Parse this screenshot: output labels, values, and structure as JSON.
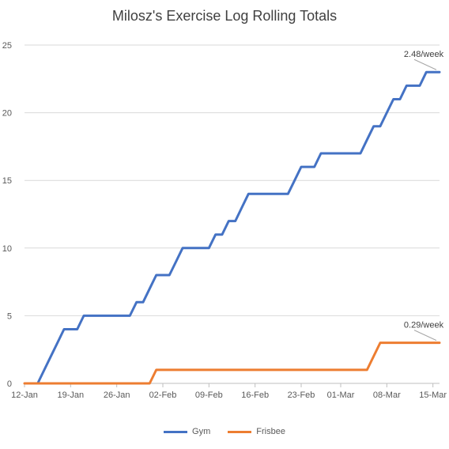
{
  "chart_data": {
    "type": "line",
    "title": "Milosz's Exercise Log Rolling Totals",
    "xlabel": "",
    "ylabel": "",
    "ylim": [
      0,
      25
    ],
    "yticks": [
      0,
      5,
      10,
      15,
      20,
      25
    ],
    "xlim": [
      "2025-01-12",
      "2025-03-16"
    ],
    "xticks": [
      {
        "date": "2025-01-12",
        "label": "12-Jan"
      },
      {
        "date": "2025-01-19",
        "label": "19-Jan"
      },
      {
        "date": "2025-01-26",
        "label": "26-Jan"
      },
      {
        "date": "2025-02-02",
        "label": "02-Feb"
      },
      {
        "date": "2025-02-09",
        "label": "09-Feb"
      },
      {
        "date": "2025-02-16",
        "label": "16-Feb"
      },
      {
        "date": "2025-02-23",
        "label": "23-Feb"
      },
      {
        "date": "2025-03-01",
        "label": "01-Mar"
      },
      {
        "date": "2025-03-08",
        "label": "08-Mar"
      },
      {
        "date": "2025-03-15",
        "label": "15-Mar"
      }
    ],
    "grid": "horizontal",
    "legend_position": "bottom",
    "series": [
      {
        "name": "Gym",
        "color": "#4472C4",
        "points": [
          [
            "2025-01-13",
            0
          ],
          [
            "2025-01-14",
            0
          ],
          [
            "2025-01-15",
            1
          ],
          [
            "2025-01-16",
            2
          ],
          [
            "2025-01-17",
            3
          ],
          [
            "2025-01-18",
            4
          ],
          [
            "2025-01-19",
            4
          ],
          [
            "2025-01-20",
            4
          ],
          [
            "2025-01-21",
            5
          ],
          [
            "2025-01-22",
            5
          ],
          [
            "2025-01-23",
            5
          ],
          [
            "2025-01-24",
            5
          ],
          [
            "2025-01-25",
            5
          ],
          [
            "2025-01-26",
            5
          ],
          [
            "2025-01-27",
            5
          ],
          [
            "2025-01-28",
            5
          ],
          [
            "2025-01-29",
            6
          ],
          [
            "2025-01-30",
            6
          ],
          [
            "2025-01-31",
            7
          ],
          [
            "2025-02-01",
            8
          ],
          [
            "2025-02-02",
            8
          ],
          [
            "2025-02-03",
            8
          ],
          [
            "2025-02-04",
            9
          ],
          [
            "2025-02-05",
            10
          ],
          [
            "2025-02-06",
            10
          ],
          [
            "2025-02-07",
            10
          ],
          [
            "2025-02-08",
            10
          ],
          [
            "2025-02-09",
            10
          ],
          [
            "2025-02-10",
            11
          ],
          [
            "2025-02-11",
            11
          ],
          [
            "2025-02-12",
            12
          ],
          [
            "2025-02-13",
            12
          ],
          [
            "2025-02-14",
            13
          ],
          [
            "2025-02-15",
            14
          ],
          [
            "2025-02-16",
            14
          ],
          [
            "2025-02-17",
            14
          ],
          [
            "2025-02-18",
            14
          ],
          [
            "2025-02-19",
            14
          ],
          [
            "2025-02-20",
            14
          ],
          [
            "2025-02-21",
            14
          ],
          [
            "2025-02-22",
            15
          ],
          [
            "2025-02-23",
            16
          ],
          [
            "2025-02-24",
            16
          ],
          [
            "2025-02-25",
            16
          ],
          [
            "2025-02-26",
            17
          ],
          [
            "2025-02-27",
            17
          ],
          [
            "2025-02-28",
            17
          ],
          [
            "2025-03-01",
            17
          ],
          [
            "2025-03-02",
            17
          ],
          [
            "2025-03-03",
            17
          ],
          [
            "2025-03-04",
            17
          ],
          [
            "2025-03-05",
            18
          ],
          [
            "2025-03-06",
            19
          ],
          [
            "2025-03-07",
            19
          ],
          [
            "2025-03-08",
            20
          ],
          [
            "2025-03-09",
            21
          ],
          [
            "2025-03-10",
            21
          ],
          [
            "2025-03-11",
            22
          ],
          [
            "2025-03-12",
            22
          ],
          [
            "2025-03-13",
            22
          ],
          [
            "2025-03-14",
            23
          ],
          [
            "2025-03-15",
            23
          ],
          [
            "2025-03-16",
            23
          ]
        ],
        "annotation": "2.48/week"
      },
      {
        "name": "Frisbee",
        "color": "#ED7D31",
        "points": [
          [
            "2025-01-12",
            0
          ],
          [
            "2025-01-31",
            0
          ],
          [
            "2025-02-01",
            1
          ],
          [
            "2025-03-05",
            1
          ],
          [
            "2025-03-07",
            3
          ],
          [
            "2025-03-16",
            3
          ]
        ],
        "annotation": "0.29/week"
      }
    ]
  }
}
